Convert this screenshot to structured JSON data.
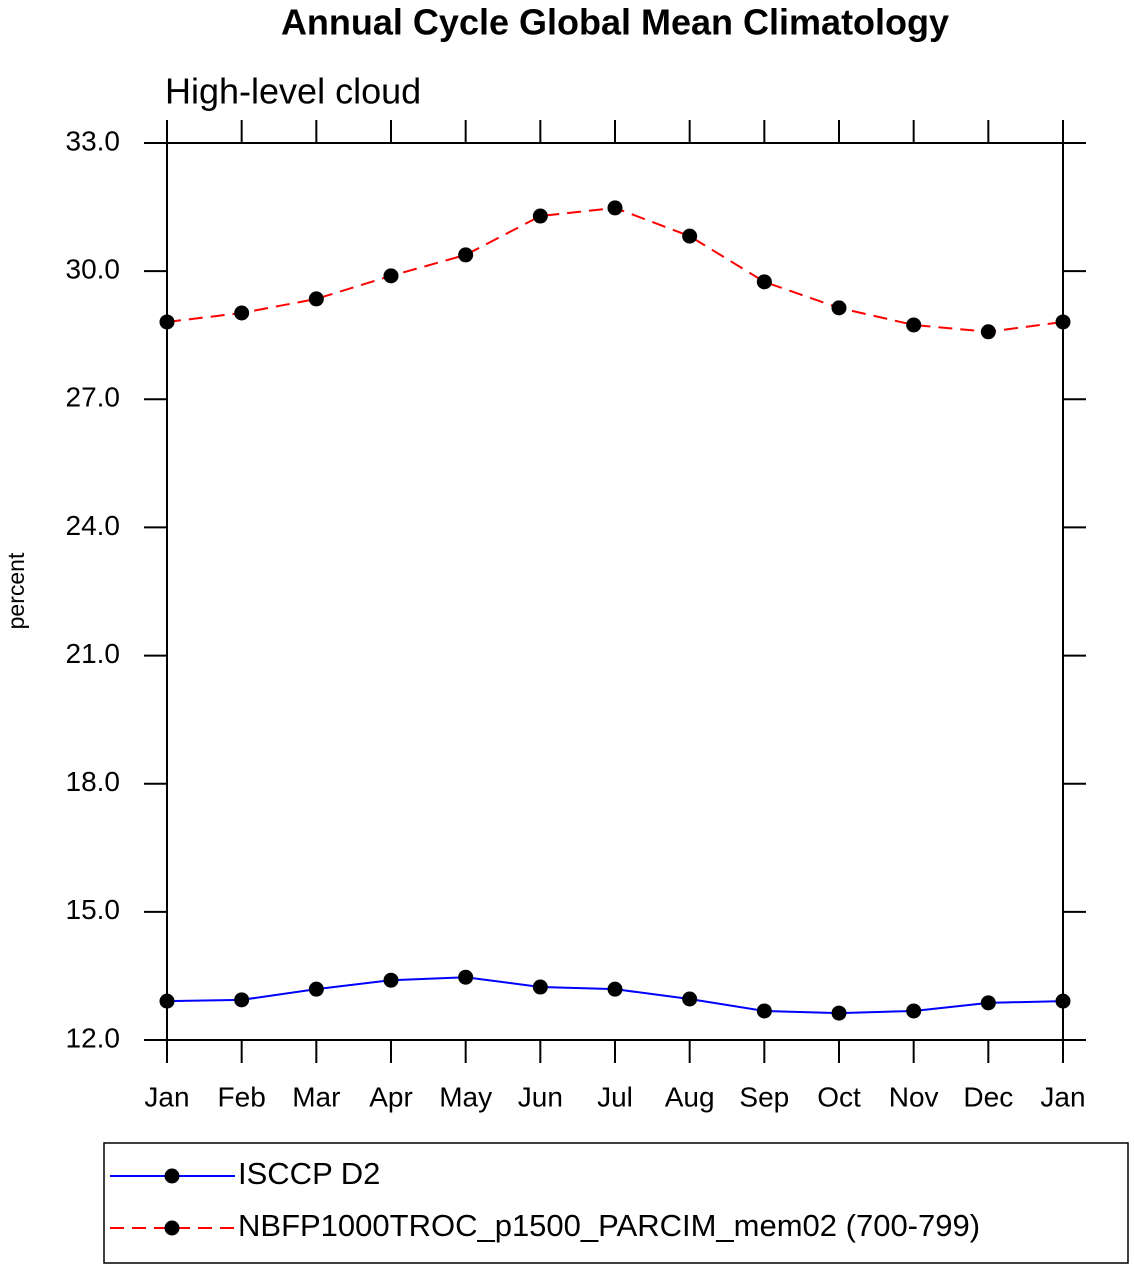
{
  "chart_data": {
    "type": "line",
    "title": "Annual Cycle Global Mean Climatology",
    "subtitle": "High-level cloud",
    "y_label": "percent",
    "categories": [
      "Jan",
      "Feb",
      "Mar",
      "Apr",
      "May",
      "Jun",
      "Jul",
      "Aug",
      "Sep",
      "Oct",
      "Nov",
      "Dec",
      "Jan"
    ],
    "series": [
      {
        "name": "ISCCP D2",
        "color": "#0000ff",
        "line_style": "solid",
        "marker_color": "#000000",
        "values": [
          12.91,
          12.94,
          13.19,
          13.4,
          13.47,
          13.24,
          13.19,
          12.96,
          12.68,
          12.63,
          12.68,
          12.87,
          12.91
        ]
      },
      {
        "name": "NBFP1000TROC_p1500_PARCIM_mem02 (700-799)",
        "color": "#ff0000",
        "line_style": "dashed",
        "marker_color": "#000000",
        "values": [
          28.81,
          29.02,
          29.35,
          29.89,
          30.38,
          31.29,
          31.48,
          30.82,
          29.75,
          29.14,
          28.74,
          28.58,
          28.81
        ]
      }
    ],
    "ylim": [
      12,
      33
    ],
    "yticks": [
      {
        "value": 12,
        "label": "12.0"
      },
      {
        "value": 15,
        "label": "15.0"
      },
      {
        "value": 18,
        "label": "18.0"
      },
      {
        "value": 21,
        "label": "21.0"
      },
      {
        "value": 24,
        "label": "24.0"
      },
      {
        "value": 27,
        "label": "27.0"
      },
      {
        "value": 30,
        "label": "30.0"
      },
      {
        "value": 33,
        "label": "33.0"
      }
    ],
    "grid": false,
    "legend": "bottom"
  }
}
